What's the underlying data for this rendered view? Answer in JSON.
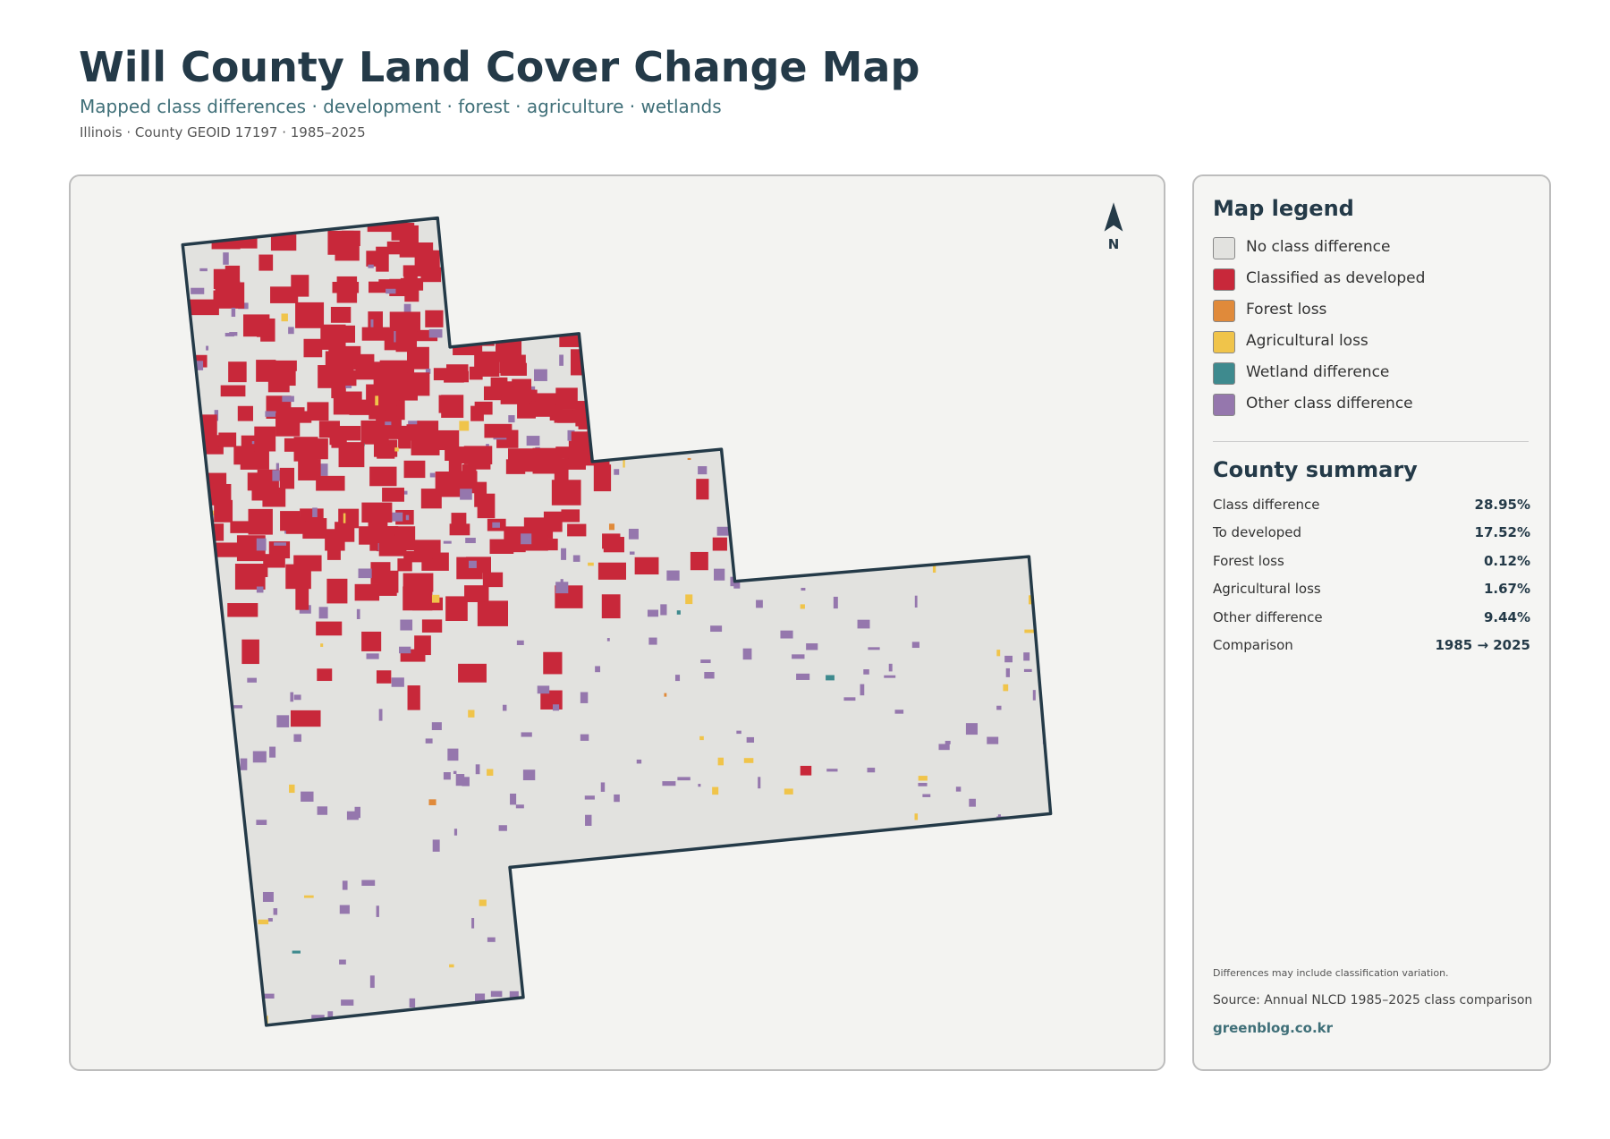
{
  "header": {
    "title": "Will County Land Cover Change Map",
    "subtitle": "Mapped class differences · development · forest · agriculture · wetlands",
    "meta": "Illinois · County GEOID 17197 · 1985–2025"
  },
  "map": {
    "north_label": "N"
  },
  "legend": {
    "title": "Map legend",
    "items": [
      {
        "label": "No class difference",
        "color": "#e2e2df"
      },
      {
        "label": "Classified as developed",
        "color": "#c8283a"
      },
      {
        "label": "Forest loss",
        "color": "#e08a3a"
      },
      {
        "label": "Agricultural loss",
        "color": "#f0c44a"
      },
      {
        "label": "Wetland difference",
        "color": "#3e8a8e"
      },
      {
        "label": "Other class difference",
        "color": "#9577ad"
      }
    ]
  },
  "summary": {
    "title": "County summary",
    "rows": [
      [
        "Class difference",
        "28.95%"
      ],
      [
        "To developed",
        "17.52%"
      ],
      [
        "Forest loss",
        "0.12%"
      ],
      [
        "Agricultural loss",
        "1.67%"
      ],
      [
        "Other difference",
        "9.44%"
      ],
      [
        "Comparison",
        "1985 → 2025"
      ]
    ]
  },
  "footer": {
    "note": "Differences may include classification variation.",
    "source": "Source: Annual NLCD 1985–2025 class comparison",
    "url": "greenblog.co.kr"
  }
}
